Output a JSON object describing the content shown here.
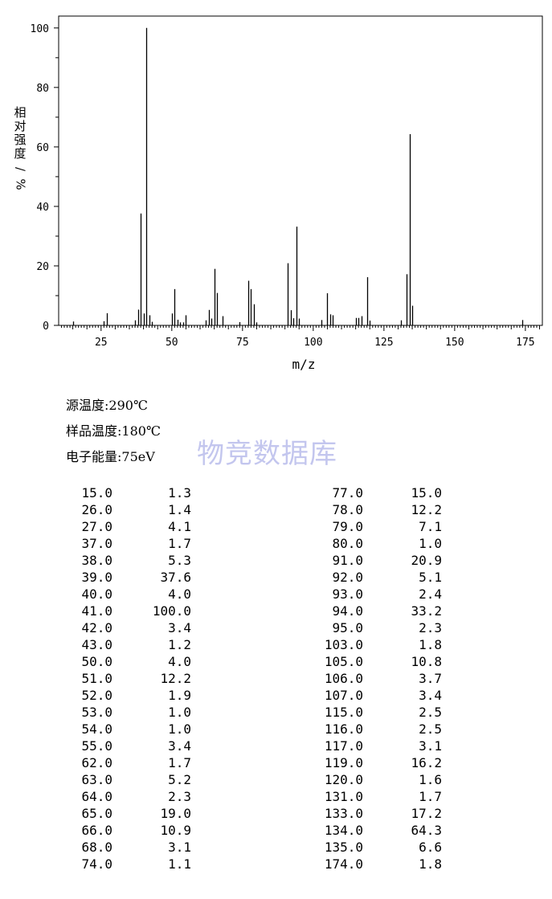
{
  "chart_data": {
    "type": "bar",
    "title": "",
    "xlabel": "m/z",
    "ylabel": "相对强度/%",
    "xlim": [
      10,
      181
    ],
    "ylim": [
      0,
      104
    ],
    "xticks": [
      25,
      50,
      75,
      100,
      125,
      150,
      175
    ],
    "yticks": [
      0,
      20,
      40,
      60,
      80,
      100
    ],
    "grid": false,
    "peaks": [
      {
        "x": 15,
        "y": 1.3
      },
      {
        "x": 26,
        "y": 1.4
      },
      {
        "x": 27,
        "y": 4.1
      },
      {
        "x": 37,
        "y": 1.7
      },
      {
        "x": 38,
        "y": 5.3
      },
      {
        "x": 39,
        "y": 37.6
      },
      {
        "x": 40,
        "y": 4.0
      },
      {
        "x": 41,
        "y": 100.0
      },
      {
        "x": 42,
        "y": 3.4
      },
      {
        "x": 43,
        "y": 1.2
      },
      {
        "x": 50,
        "y": 4.0
      },
      {
        "x": 51,
        "y": 12.2
      },
      {
        "x": 52,
        "y": 1.9
      },
      {
        "x": 53,
        "y": 1.0
      },
      {
        "x": 54,
        "y": 1.0
      },
      {
        "x": 55,
        "y": 3.4
      },
      {
        "x": 62,
        "y": 1.7
      },
      {
        "x": 63,
        "y": 5.2
      },
      {
        "x": 64,
        "y": 2.3
      },
      {
        "x": 65,
        "y": 19.0
      },
      {
        "x": 66,
        "y": 10.9
      },
      {
        "x": 68,
        "y": 3.1
      },
      {
        "x": 74,
        "y": 1.1
      },
      {
        "x": 77,
        "y": 15.0
      },
      {
        "x": 78,
        "y": 12.2
      },
      {
        "x": 79,
        "y": 7.1
      },
      {
        "x": 80,
        "y": 1.0
      },
      {
        "x": 91,
        "y": 20.9
      },
      {
        "x": 92,
        "y": 5.1
      },
      {
        "x": 93,
        "y": 2.4
      },
      {
        "x": 94,
        "y": 33.2
      },
      {
        "x": 95,
        "y": 2.3
      },
      {
        "x": 103,
        "y": 1.8
      },
      {
        "x": 105,
        "y": 10.8
      },
      {
        "x": 106,
        "y": 3.7
      },
      {
        "x": 107,
        "y": 3.4
      },
      {
        "x": 115,
        "y": 2.5
      },
      {
        "x": 116,
        "y": 2.5
      },
      {
        "x": 117,
        "y": 3.1
      },
      {
        "x": 119,
        "y": 16.2
      },
      {
        "x": 120,
        "y": 1.6
      },
      {
        "x": 131,
        "y": 1.7
      },
      {
        "x": 133,
        "y": 17.2
      },
      {
        "x": 134,
        "y": 64.3
      },
      {
        "x": 135,
        "y": 6.6
      },
      {
        "x": 174,
        "y": 1.8
      }
    ]
  },
  "params": [
    {
      "label": "源温度:",
      "value": "290℃"
    },
    {
      "label": "样品温度:",
      "value": "180℃"
    },
    {
      "label": "电子能量:",
      "value": "75eV"
    }
  ],
  "watermark": "物竞数据库",
  "table": {
    "left": [
      [
        "15.0",
        "1.3"
      ],
      [
        "26.0",
        "1.4"
      ],
      [
        "27.0",
        "4.1"
      ],
      [
        "37.0",
        "1.7"
      ],
      [
        "38.0",
        "5.3"
      ],
      [
        "39.0",
        "37.6"
      ],
      [
        "40.0",
        "4.0"
      ],
      [
        "41.0",
        "100.0"
      ],
      [
        "42.0",
        "3.4"
      ],
      [
        "43.0",
        "1.2"
      ],
      [
        "50.0",
        "4.0"
      ],
      [
        "51.0",
        "12.2"
      ],
      [
        "52.0",
        "1.9"
      ],
      [
        "53.0",
        "1.0"
      ],
      [
        "54.0",
        "1.0"
      ],
      [
        "55.0",
        "3.4"
      ],
      [
        "62.0",
        "1.7"
      ],
      [
        "63.0",
        "5.2"
      ],
      [
        "64.0",
        "2.3"
      ],
      [
        "65.0",
        "19.0"
      ],
      [
        "66.0",
        "10.9"
      ],
      [
        "68.0",
        "3.1"
      ],
      [
        "74.0",
        "1.1"
      ]
    ],
    "right": [
      [
        "77.0",
        "15.0"
      ],
      [
        "78.0",
        "12.2"
      ],
      [
        "79.0",
        "7.1"
      ],
      [
        "80.0",
        "1.0"
      ],
      [
        "91.0",
        "20.9"
      ],
      [
        "92.0",
        "5.1"
      ],
      [
        "93.0",
        "2.4"
      ],
      [
        "94.0",
        "33.2"
      ],
      [
        "95.0",
        "2.3"
      ],
      [
        "103.0",
        "1.8"
      ],
      [
        "105.0",
        "10.8"
      ],
      [
        "106.0",
        "3.7"
      ],
      [
        "107.0",
        "3.4"
      ],
      [
        "115.0",
        "2.5"
      ],
      [
        "116.0",
        "2.5"
      ],
      [
        "117.0",
        "3.1"
      ],
      [
        "119.0",
        "16.2"
      ],
      [
        "120.0",
        "1.6"
      ],
      [
        "131.0",
        "1.7"
      ],
      [
        "133.0",
        "17.2"
      ],
      [
        "134.0",
        "64.3"
      ],
      [
        "135.0",
        "6.6"
      ],
      [
        "174.0",
        "1.8"
      ]
    ]
  }
}
